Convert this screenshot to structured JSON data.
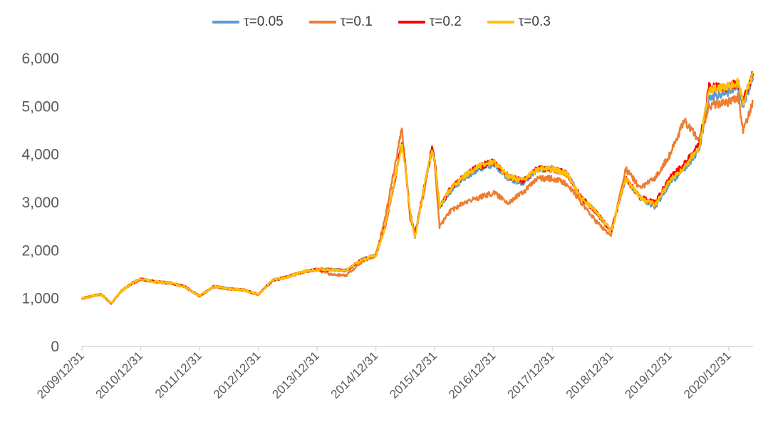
{
  "chart_data": {
    "type": "line",
    "title": "",
    "xlabel": "",
    "ylabel": "",
    "ylim": [
      0,
      6000
    ],
    "yticks": [
      0,
      1000,
      2000,
      3000,
      4000,
      5000,
      6000
    ],
    "ytick_labels": [
      "0",
      "1,000",
      "2,000",
      "3,000",
      "4,000",
      "5,000",
      "6,000"
    ],
    "xticks": [
      "2009/12/31",
      "2010/12/31",
      "2011/12/31",
      "2012/12/31",
      "2013/12/31",
      "2014/12/31",
      "2015/12/31",
      "2016/12/31",
      "2017/12/31",
      "2018/12/31",
      "2019/12/31",
      "2020/12/31"
    ],
    "x_end": "2021/05/31",
    "grid": false,
    "legend_position": "top-center",
    "series": [
      {
        "name": "τ=0.05",
        "color": "#5B9BD5",
        "points": [
          [
            "2009/12/31",
            1000
          ],
          [
            "2010/02/28",
            1050
          ],
          [
            "2010/04/30",
            1080
          ],
          [
            "2010/06/30",
            900
          ],
          [
            "2010/08/31",
            1150
          ],
          [
            "2010/10/31",
            1300
          ],
          [
            "2010/12/31",
            1400
          ],
          [
            "2011/03/31",
            1350
          ],
          [
            "2011/06/30",
            1320
          ],
          [
            "2011/09/30",
            1250
          ],
          [
            "2011/12/31",
            1050
          ],
          [
            "2012/03/31",
            1250
          ],
          [
            "2012/06/30",
            1200
          ],
          [
            "2012/09/30",
            1180
          ],
          [
            "2012/12/31",
            1080
          ],
          [
            "2013/03/31",
            1380
          ],
          [
            "2013/06/30",
            1450
          ],
          [
            "2013/09/30",
            1550
          ],
          [
            "2013/12/31",
            1600
          ],
          [
            "2014/03/31",
            1600
          ],
          [
            "2014/06/30",
            1580
          ],
          [
            "2014/09/30",
            1800
          ],
          [
            "2014/12/31",
            1900
          ],
          [
            "2015/02/28",
            2500
          ],
          [
            "2015/04/30",
            3500
          ],
          [
            "2015/06/10",
            4200
          ],
          [
            "2015/06/30",
            3800
          ],
          [
            "2015/07/31",
            2800
          ],
          [
            "2015/08/31",
            2300
          ],
          [
            "2015/10/31",
            3400
          ],
          [
            "2015/12/15",
            4100
          ],
          [
            "2015/12/31",
            3900
          ],
          [
            "2016/01/31",
            2900
          ],
          [
            "2016/03/31",
            3200
          ],
          [
            "2016/06/30",
            3500
          ],
          [
            "2016/09/30",
            3700
          ],
          [
            "2016/12/31",
            3800
          ],
          [
            "2017/03/31",
            3500
          ],
          [
            "2017/06/30",
            3400
          ],
          [
            "2017/09/30",
            3700
          ],
          [
            "2017/12/31",
            3700
          ],
          [
            "2018/03/31",
            3600
          ],
          [
            "2018/06/30",
            3100
          ],
          [
            "2018/09/30",
            2800
          ],
          [
            "2018/12/31",
            2400
          ],
          [
            "2019/03/31",
            3500
          ],
          [
            "2019/06/30",
            3100
          ],
          [
            "2019/09/30",
            2900
          ],
          [
            "2019/12/31",
            3400
          ],
          [
            "2020/03/31",
            3700
          ],
          [
            "2020/06/30",
            4100
          ],
          [
            "2020/08/31",
            5200
          ],
          [
            "2020/12/31",
            5300
          ],
          [
            "2021/02/28",
            5400
          ],
          [
            "2021/03/31",
            5000
          ],
          [
            "2021/05/31",
            5600
          ]
        ]
      },
      {
        "name": "τ=0.1",
        "color": "#ED7D31",
        "points": [
          [
            "2009/12/31",
            1000
          ],
          [
            "2010/02/28",
            1050
          ],
          [
            "2010/04/30",
            1080
          ],
          [
            "2010/06/30",
            900
          ],
          [
            "2010/08/31",
            1150
          ],
          [
            "2010/10/31",
            1300
          ],
          [
            "2010/12/31",
            1400
          ],
          [
            "2011/03/31",
            1350
          ],
          [
            "2011/06/30",
            1320
          ],
          [
            "2011/09/30",
            1250
          ],
          [
            "2011/12/31",
            1050
          ],
          [
            "2012/03/31",
            1250
          ],
          [
            "2012/06/30",
            1200
          ],
          [
            "2012/09/30",
            1180
          ],
          [
            "2012/12/31",
            1080
          ],
          [
            "2013/03/31",
            1380
          ],
          [
            "2013/06/30",
            1450
          ],
          [
            "2013/09/30",
            1550
          ],
          [
            "2013/12/31",
            1600
          ],
          [
            "2014/03/31",
            1500
          ],
          [
            "2014/06/30",
            1480
          ],
          [
            "2014/09/30",
            1750
          ],
          [
            "2014/12/31",
            1900
          ],
          [
            "2015/02/28",
            2700
          ],
          [
            "2015/04/30",
            3800
          ],
          [
            "2015/06/10",
            4550
          ],
          [
            "2015/06/30",
            3900
          ],
          [
            "2015/07/31",
            2700
          ],
          [
            "2015/08/31",
            2350
          ],
          [
            "2015/10/31",
            3300
          ],
          [
            "2015/12/15",
            4200
          ],
          [
            "2015/12/31",
            3800
          ],
          [
            "2016/01/31",
            2500
          ],
          [
            "2016/03/31",
            2800
          ],
          [
            "2016/06/30",
            3000
          ],
          [
            "2016/09/30",
            3100
          ],
          [
            "2016/12/31",
            3200
          ],
          [
            "2017/03/31",
            3000
          ],
          [
            "2017/06/30",
            3200
          ],
          [
            "2017/09/30",
            3500
          ],
          [
            "2017/12/31",
            3500
          ],
          [
            "2018/03/31",
            3400
          ],
          [
            "2018/06/30",
            3000
          ],
          [
            "2018/09/30",
            2600
          ],
          [
            "2018/12/31",
            2300
          ],
          [
            "2019/03/31",
            3700
          ],
          [
            "2019/06/30",
            3300
          ],
          [
            "2019/09/30",
            3500
          ],
          [
            "2019/12/31",
            4000
          ],
          [
            "2020/03/31",
            4700
          ],
          [
            "2020/06/30",
            4300
          ],
          [
            "2020/08/31",
            5000
          ],
          [
            "2020/12/31",
            5100
          ],
          [
            "2021/02/28",
            5200
          ],
          [
            "2021/03/31",
            4500
          ],
          [
            "2021/05/31",
            5100
          ]
        ]
      },
      {
        "name": "τ=0.2",
        "color": "#FF0000",
        "points": [
          [
            "2009/12/31",
            1000
          ],
          [
            "2010/02/28",
            1050
          ],
          [
            "2010/04/30",
            1080
          ],
          [
            "2010/06/30",
            900
          ],
          [
            "2010/08/31",
            1150
          ],
          [
            "2010/10/31",
            1300
          ],
          [
            "2010/12/31",
            1400
          ],
          [
            "2011/03/31",
            1350
          ],
          [
            "2011/06/30",
            1320
          ],
          [
            "2011/09/30",
            1250
          ],
          [
            "2011/12/31",
            1050
          ],
          [
            "2012/03/31",
            1250
          ],
          [
            "2012/06/30",
            1200
          ],
          [
            "2012/09/30",
            1180
          ],
          [
            "2012/12/31",
            1080
          ],
          [
            "2013/03/31",
            1380
          ],
          [
            "2013/06/30",
            1450
          ],
          [
            "2013/09/30",
            1550
          ],
          [
            "2013/12/31",
            1600
          ],
          [
            "2014/03/31",
            1600
          ],
          [
            "2014/06/30",
            1580
          ],
          [
            "2014/09/30",
            1800
          ],
          [
            "2014/12/31",
            1900
          ],
          [
            "2015/02/28",
            2500
          ],
          [
            "2015/04/30",
            3500
          ],
          [
            "2015/06/10",
            4250
          ],
          [
            "2015/06/30",
            3800
          ],
          [
            "2015/07/31",
            2800
          ],
          [
            "2015/08/31",
            2300
          ],
          [
            "2015/10/31",
            3400
          ],
          [
            "2015/12/15",
            4100
          ],
          [
            "2015/12/31",
            3900
          ],
          [
            "2016/01/31",
            2900
          ],
          [
            "2016/03/31",
            3250
          ],
          [
            "2016/06/30",
            3550
          ],
          [
            "2016/09/30",
            3750
          ],
          [
            "2016/12/31",
            3850
          ],
          [
            "2017/03/31",
            3550
          ],
          [
            "2017/06/30",
            3450
          ],
          [
            "2017/09/30",
            3700
          ],
          [
            "2017/12/31",
            3700
          ],
          [
            "2018/03/31",
            3600
          ],
          [
            "2018/06/30",
            3100
          ],
          [
            "2018/09/30",
            2800
          ],
          [
            "2018/12/31",
            2400
          ],
          [
            "2019/03/31",
            3500
          ],
          [
            "2019/06/30",
            3100
          ],
          [
            "2019/09/30",
            3000
          ],
          [
            "2019/12/31",
            3500
          ],
          [
            "2020/03/31",
            3800
          ],
          [
            "2020/06/30",
            4200
          ],
          [
            "2020/08/31",
            5400
          ],
          [
            "2020/12/31",
            5400
          ],
          [
            "2021/02/28",
            5500
          ],
          [
            "2021/03/31",
            5100
          ],
          [
            "2021/05/31",
            5700
          ]
        ]
      },
      {
        "name": "τ=0.3",
        "color": "#FFC000",
        "points": [
          [
            "2009/12/31",
            1000
          ],
          [
            "2010/02/28",
            1050
          ],
          [
            "2010/04/30",
            1080
          ],
          [
            "2010/06/30",
            900
          ],
          [
            "2010/08/31",
            1150
          ],
          [
            "2010/10/31",
            1300
          ],
          [
            "2010/12/31",
            1400
          ],
          [
            "2011/03/31",
            1350
          ],
          [
            "2011/06/30",
            1320
          ],
          [
            "2011/09/30",
            1250
          ],
          [
            "2011/12/31",
            1050
          ],
          [
            "2012/03/31",
            1250
          ],
          [
            "2012/06/30",
            1200
          ],
          [
            "2012/09/30",
            1180
          ],
          [
            "2012/12/31",
            1080
          ],
          [
            "2013/03/31",
            1380
          ],
          [
            "2013/06/30",
            1450
          ],
          [
            "2013/09/30",
            1550
          ],
          [
            "2013/12/31",
            1600
          ],
          [
            "2014/03/31",
            1600
          ],
          [
            "2014/06/30",
            1580
          ],
          [
            "2014/09/30",
            1800
          ],
          [
            "2014/12/31",
            1900
          ],
          [
            "2015/02/28",
            2500
          ],
          [
            "2015/04/30",
            3500
          ],
          [
            "2015/06/10",
            4200
          ],
          [
            "2015/06/30",
            3800
          ],
          [
            "2015/07/31",
            2800
          ],
          [
            "2015/08/31",
            2250
          ],
          [
            "2015/10/31",
            3400
          ],
          [
            "2015/12/15",
            4100
          ],
          [
            "2015/12/31",
            3900
          ],
          [
            "2016/01/31",
            2900
          ],
          [
            "2016/03/31",
            3250
          ],
          [
            "2016/06/30",
            3550
          ],
          [
            "2016/09/30",
            3750
          ],
          [
            "2016/12/31",
            3850
          ],
          [
            "2017/03/31",
            3550
          ],
          [
            "2017/06/30",
            3450
          ],
          [
            "2017/09/30",
            3700
          ],
          [
            "2017/12/31",
            3700
          ],
          [
            "2018/03/31",
            3600
          ],
          [
            "2018/06/30",
            3100
          ],
          [
            "2018/09/30",
            2800
          ],
          [
            "2018/12/31",
            2400
          ],
          [
            "2019/03/31",
            3500
          ],
          [
            "2019/06/30",
            3100
          ],
          [
            "2019/09/30",
            2950
          ],
          [
            "2019/12/31",
            3450
          ],
          [
            "2020/03/31",
            3750
          ],
          [
            "2020/06/30",
            4150
          ],
          [
            "2020/08/31",
            5350
          ],
          [
            "2020/12/31",
            5400
          ],
          [
            "2021/02/28",
            5500
          ],
          [
            "2021/03/31",
            5100
          ],
          [
            "2021/05/31",
            5700
          ]
        ]
      }
    ]
  }
}
